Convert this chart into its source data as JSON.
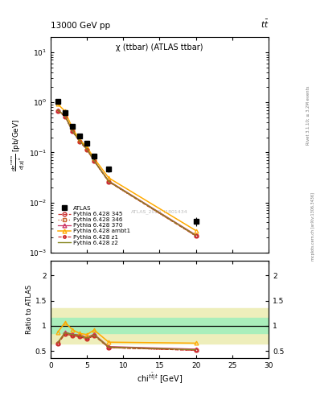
{
  "title_top_left": "13000 GeV pp",
  "title_top_right": "tt",
  "plot_title": "χ (ttbar) (ATLAS ttbar)",
  "watermark": "ATLAS_2020_I1801434",
  "rivet_text": "Rivet 3.1.10; ≥ 3.2M events",
  "arxiv_text": "mcplots.cern.ch [arXiv:1306.3436]",
  "ylabel_ratio": "Ratio to ATLAS",
  "xlabel": "chi",
  "xlim": [
    0,
    30
  ],
  "ylim_main": [
    0.001,
    20
  ],
  "ylim_ratio": [
    0.35,
    2.3
  ],
  "atlas_x": [
    1,
    2,
    3,
    4,
    5,
    6,
    8,
    20
  ],
  "atlas_y": [
    1.05,
    0.62,
    0.33,
    0.21,
    0.155,
    0.083,
    0.046,
    0.0042
  ],
  "atlas_yerr": [
    0.12,
    0.06,
    0.035,
    0.022,
    0.016,
    0.009,
    0.006,
    0.0008
  ],
  "p345_x": [
    1,
    2,
    3,
    4,
    5,
    6,
    8,
    20
  ],
  "p345_y": [
    0.68,
    0.52,
    0.265,
    0.165,
    0.114,
    0.067,
    0.026,
    0.00215
  ],
  "p346_x": [
    1,
    2,
    3,
    4,
    5,
    6,
    8,
    20
  ],
  "p346_y": [
    0.68,
    0.52,
    0.265,
    0.165,
    0.114,
    0.067,
    0.026,
    0.00215
  ],
  "p370_x": [
    1,
    2,
    3,
    4,
    5,
    6,
    8,
    20
  ],
  "p370_y": [
    0.7,
    0.54,
    0.275,
    0.172,
    0.12,
    0.069,
    0.027,
    0.00225
  ],
  "pambt1_x": [
    1,
    2,
    3,
    4,
    5,
    6,
    8,
    20
  ],
  "pambt1_y": [
    0.92,
    0.66,
    0.305,
    0.178,
    0.128,
    0.076,
    0.031,
    0.00275
  ],
  "pz1_x": [
    1,
    2,
    3,
    4,
    5,
    6,
    8,
    20
  ],
  "pz1_y": [
    0.68,
    0.52,
    0.265,
    0.165,
    0.114,
    0.067,
    0.026,
    0.00215
  ],
  "pz2_x": [
    1,
    2,
    3,
    4,
    5,
    6,
    8,
    20
  ],
  "pz2_y": [
    0.7,
    0.535,
    0.272,
    0.169,
    0.117,
    0.068,
    0.0265,
    0.0022
  ],
  "band_x": [
    0,
    1,
    2,
    3,
    4,
    5,
    6,
    8,
    20,
    30
  ],
  "band_in_lo": [
    0.85,
    0.85,
    0.85,
    0.85,
    0.85,
    0.85,
    0.85,
    0.85,
    0.85,
    0.85
  ],
  "band_in_hi": [
    1.15,
    1.15,
    1.15,
    1.15,
    1.15,
    1.15,
    1.15,
    1.15,
    1.15,
    1.15
  ],
  "band_out_lo": [
    0.65,
    0.65,
    0.65,
    0.65,
    0.65,
    0.65,
    0.65,
    0.65,
    0.65,
    0.65
  ],
  "band_out_hi": [
    1.35,
    1.35,
    1.35,
    1.35,
    1.35,
    1.35,
    1.35,
    1.35,
    1.35,
    1.35
  ],
  "color_p345": "#cc3333",
  "color_p346": "#cc6633",
  "color_p370": "#cc3366",
  "color_pambt1": "#ffaa00",
  "color_pz1": "#cc2222",
  "color_pz2": "#888822",
  "band_inner_color": "#aaeebb",
  "band_outer_color": "#eeeebb"
}
